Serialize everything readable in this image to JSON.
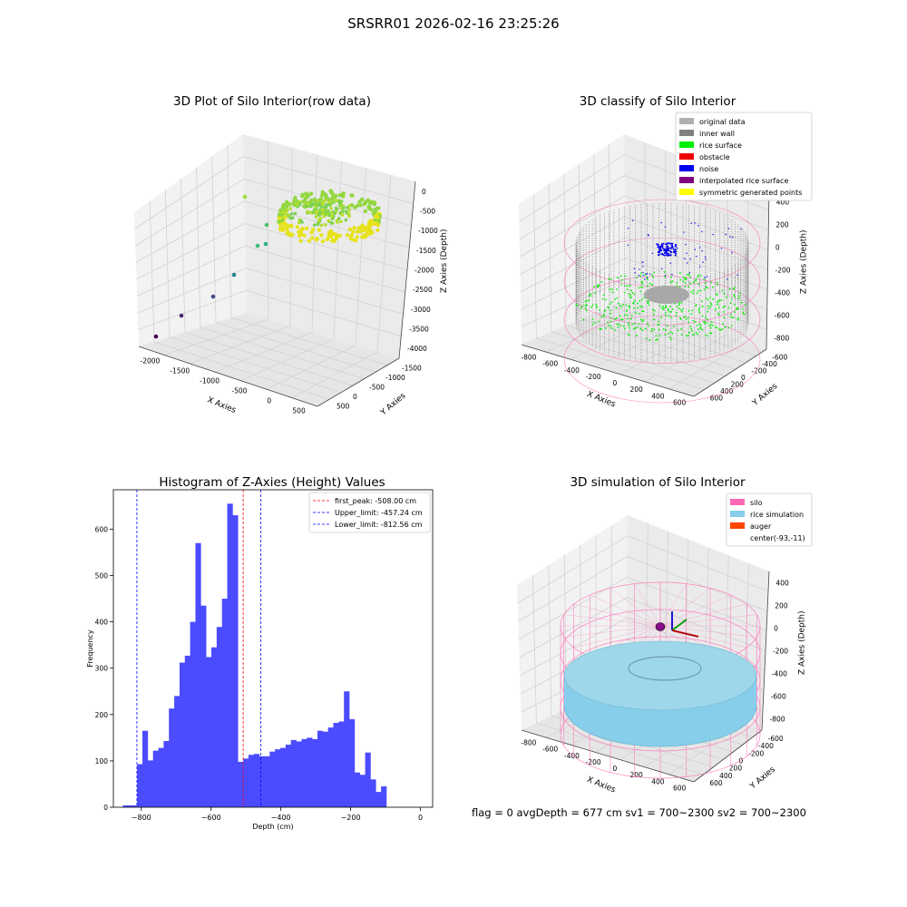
{
  "suptitle": "SRSRR01 2026-02-16 23:25:26",
  "status_line": "flag = 0     avgDepth = 677 cm  sv1 = 700~2300  sv2 = 700~2300",
  "panels": {
    "raw": {
      "title": "3D Plot of Silo Interior(row data)",
      "xlabel": "X Axies",
      "ylabel": "Y Axies",
      "zlabel": "Z Axies (Depth)",
      "xticks": [
        "-2000",
        "-1500",
        "-1000",
        "-500",
        "0",
        "500"
      ],
      "yticks": [
        "500",
        "0",
        "-500",
        "-1000",
        "-1500"
      ],
      "zticks": [
        "0",
        "-500",
        "-1000",
        "-1500",
        "-2000",
        "-2500",
        "-3000",
        "-3500",
        "-4000"
      ]
    },
    "classify": {
      "title": "3D classify of Silo Interior",
      "xlabel": "X Axies",
      "ylabel": "Y Axies",
      "zlabel": "Z Axies (Depth)",
      "xticks": [
        "-800",
        "-600",
        "-400",
        "-200",
        "0",
        "200",
        "400",
        "600"
      ],
      "yticks": [
        "600",
        "400",
        "200",
        "0",
        "-200",
        "-400",
        "-600"
      ],
      "zticks": [
        "400",
        "200",
        "0",
        "-200",
        "-400",
        "-600",
        "-800"
      ],
      "legend": [
        {
          "label": "original data",
          "color": "#b0b0b0"
        },
        {
          "label": "inner wall",
          "color": "#808080"
        },
        {
          "label": "rice surface",
          "color": "#00ee00"
        },
        {
          "label": "obstacle",
          "color": "#ee0000"
        },
        {
          "label": "noise",
          "color": "#0000ee"
        },
        {
          "label": "interpolated rice surface",
          "color": "#800080"
        },
        {
          "label": "symmetric generated points",
          "color": "#ffff00"
        }
      ]
    },
    "hist": {
      "title": "Histogram of Z-Axies (Height) Values",
      "xlabel": "Depth (cm)",
      "ylabel": "Frequency",
      "xticks": [
        "-800",
        "-600",
        "-400",
        "-200",
        "0"
      ],
      "yticks": [
        "0",
        "100",
        "200",
        "300",
        "400",
        "500",
        "600"
      ],
      "legend": [
        {
          "label": "first_peak: -508.00 cm",
          "color": "#ff0000"
        },
        {
          "label": "Upper_limit: -457.24 cm",
          "color": "#0000ff"
        },
        {
          "label": "Lower_limit: -812.56 cm",
          "color": "#0000ff"
        }
      ]
    },
    "sim": {
      "title": "3D simulation of Silo Interior",
      "xlabel": "X Axies",
      "ylabel": "Y Axies",
      "zlabel": "Z Axies (Depth)",
      "xticks": [
        "-800",
        "-600",
        "-400",
        "-200",
        "0",
        "200",
        "400",
        "600"
      ],
      "yticks": [
        "600",
        "400",
        "200",
        "0",
        "-200",
        "-400",
        "-600"
      ],
      "zticks": [
        "400",
        "200",
        "0",
        "-200",
        "-400",
        "-600",
        "-800"
      ],
      "legend": [
        {
          "label": "silo",
          "color": "#ff69b4"
        },
        {
          "label": "rice simulation",
          "color": "#87ceeb"
        },
        {
          "label": "auger",
          "color": "#ff4500"
        },
        {
          "label": "center(-93,-11)",
          "color": "none"
        }
      ]
    }
  },
  "colors": {
    "histogram_bar": "#4b4bff",
    "first_peak_line": "#ff0000",
    "limit_lines": "#0000ff",
    "silo_wireframe": "#ff69b4",
    "rice_simulation": "#87ceeb",
    "inner_wall": "#808080",
    "rice_surface": "#00ee00",
    "noise": "#0000ee"
  },
  "chart_data": [
    {
      "type": "scatter",
      "title": "3D Plot of Silo Interior(row data)",
      "xlabel": "X Axies",
      "ylabel": "Y Axies",
      "zlabel": "Z Axies (Depth)",
      "xlim": [
        -2100,
        700
      ],
      "ylim": [
        -1500,
        700
      ],
      "zlim": [
        -4000,
        0
      ],
      "grid": true
    },
    {
      "type": "scatter",
      "title": "3D classify of Silo Interior",
      "xlabel": "X Axies",
      "ylabel": "Y Axies",
      "zlabel": "Z Axies (Depth)",
      "series": [
        {
          "name": "original data"
        },
        {
          "name": "inner wall"
        },
        {
          "name": "rice surface"
        },
        {
          "name": "obstacle"
        },
        {
          "name": "noise"
        },
        {
          "name": "interpolated rice surface"
        },
        {
          "name": "symmetric generated points"
        }
      ],
      "xlim": [
        -800,
        600
      ],
      "ylim": [
        -700,
        700
      ],
      "zlim": [
        -900,
        450
      ],
      "legend": "top-right",
      "grid": true
    },
    {
      "type": "bar",
      "title": "Histogram of Z-Axies (Height) Values",
      "xlabel": "Depth (cm)",
      "ylabel": "Frequency",
      "xlim": [
        -880,
        35
      ],
      "ylim": [
        0,
        685
      ],
      "bin_start": -812,
      "bin_width": 15.2,
      "values": [
        93,
        165,
        101,
        122,
        128,
        143,
        213,
        240,
        312,
        327,
        400,
        570,
        435,
        324,
        345,
        389,
        450,
        655,
        630,
        98,
        105,
        113,
        115,
        110,
        110,
        120,
        125,
        128,
        135,
        145,
        142,
        147,
        150,
        147,
        165,
        163,
        172,
        182,
        185,
        250,
        190,
        75,
        70,
        118,
        60,
        33,
        45
      ],
      "extra_bars": [
        {
          "x0": -853,
          "x1": -812,
          "value": 4
        }
      ],
      "vlines": [
        {
          "name": "first_peak: -508.00 cm",
          "x": -508.0,
          "style": "dashed",
          "color": "#ff0000"
        },
        {
          "name": "Upper_limit: -457.24 cm",
          "x": -457.24,
          "style": "dashed",
          "color": "#0000ff"
        },
        {
          "name": "Lower_limit: -812.56 cm",
          "x": -812.56,
          "style": "dashed",
          "color": "#0000ff"
        }
      ],
      "legend": "top-right",
      "grid": false
    },
    {
      "type": "scatter",
      "title": "3D simulation of Silo Interior",
      "xlabel": "X Axies",
      "ylabel": "Y Axies",
      "zlabel": "Z Axies (Depth)",
      "series": [
        {
          "name": "silo"
        },
        {
          "name": "rice simulation"
        },
        {
          "name": "auger"
        },
        {
          "name": "center(-93,-11)"
        }
      ],
      "center": [
        -93,
        -11
      ],
      "xlim": [
        -800,
        600
      ],
      "ylim": [
        -700,
        700
      ],
      "zlim": [
        -900,
        450
      ],
      "legend": "top-right",
      "grid": true
    }
  ]
}
